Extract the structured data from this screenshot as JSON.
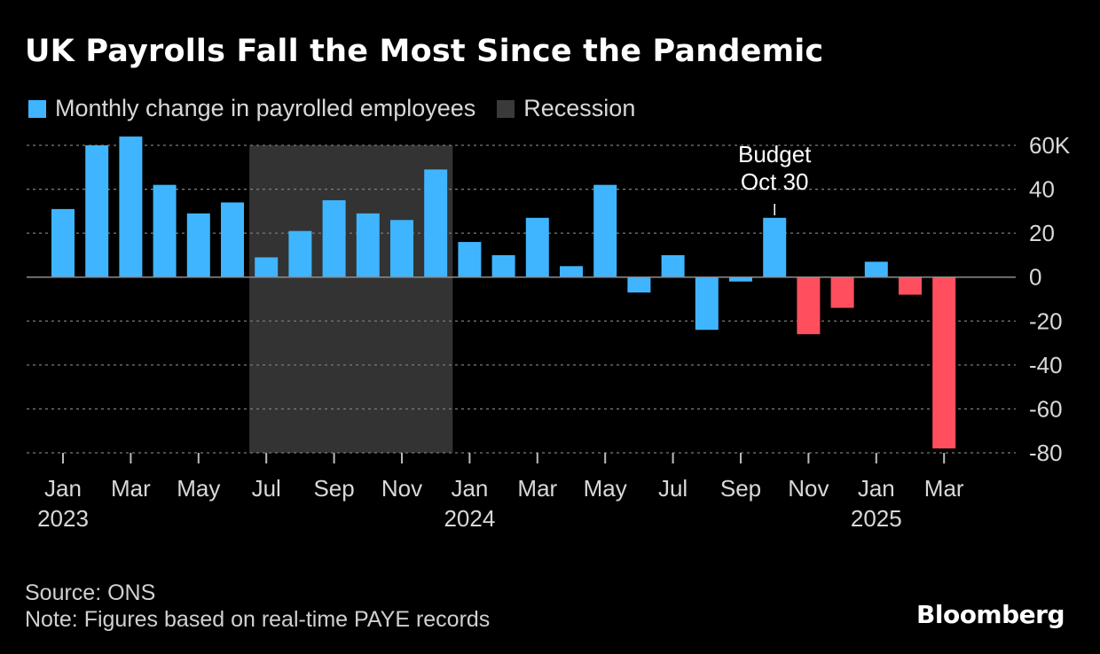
{
  "header": {
    "title": "UK Payrolls Fall the Most Since the Pandemic"
  },
  "legend": {
    "series_label": "Monthly change in payrolled employees",
    "recession_label": "Recession"
  },
  "colors": {
    "positive": "#3FB5FF",
    "negative": "#FF4F5E",
    "recession": "#333333",
    "grid": "#7a7a7a",
    "zero": "#8c8c8c",
    "text": "#d8d8d8"
  },
  "footer": {
    "source": "Source: ONS",
    "note": "Note: Figures based on real-time PAYE records",
    "brand": "Bloomberg"
  },
  "chart_data": {
    "type": "bar",
    "title": "UK Payrolls Fall the Most Since the Pandemic",
    "xlabel": "",
    "ylabel": "",
    "ylim": [
      -80,
      60
    ],
    "y_ticks": [
      60,
      40,
      20,
      0,
      -20,
      -40,
      -60,
      -80
    ],
    "y_tick_labels": [
      "60K",
      "40",
      "20",
      "0",
      "-20",
      "-40",
      "-60",
      "-80"
    ],
    "categories": [
      "2023-01",
      "2023-02",
      "2023-03",
      "2023-04",
      "2023-05",
      "2023-06",
      "2023-07",
      "2023-08",
      "2023-09",
      "2023-10",
      "2023-11",
      "2023-12",
      "2024-01",
      "2024-02",
      "2024-03",
      "2024-04",
      "2024-05",
      "2024-06",
      "2024-07",
      "2024-08",
      "2024-09",
      "2024-10",
      "2024-11",
      "2024-12",
      "2025-01",
      "2025-02",
      "2025-03"
    ],
    "series": [
      {
        "name": "Monthly change in payrolled employees",
        "values": [
          31,
          60,
          64,
          42,
          29,
          34,
          9,
          21,
          35,
          29,
          26,
          49,
          16,
          10,
          27,
          5,
          42,
          -7,
          10,
          -24,
          -2,
          27,
          -26,
          -14,
          7,
          -8,
          -78
        ]
      }
    ],
    "recession": {
      "start": "2023-07",
      "end": "2023-12",
      "label": "Recession"
    },
    "x_ticks": [
      {
        "index": 0,
        "month": "Jan",
        "year": "2023"
      },
      {
        "index": 2,
        "month": "Mar",
        "year": ""
      },
      {
        "index": 4,
        "month": "May",
        "year": ""
      },
      {
        "index": 6,
        "month": "Jul",
        "year": ""
      },
      {
        "index": 8,
        "month": "Sep",
        "year": ""
      },
      {
        "index": 10,
        "month": "Nov",
        "year": ""
      },
      {
        "index": 12,
        "month": "Jan",
        "year": "2024"
      },
      {
        "index": 14,
        "month": "Mar",
        "year": ""
      },
      {
        "index": 16,
        "month": "May",
        "year": ""
      },
      {
        "index": 18,
        "month": "Jul",
        "year": ""
      },
      {
        "index": 20,
        "month": "Sep",
        "year": ""
      },
      {
        "index": 22,
        "month": "Nov",
        "year": ""
      },
      {
        "index": 24,
        "month": "Jan",
        "year": "2025"
      },
      {
        "index": 26,
        "month": "Mar",
        "year": ""
      }
    ],
    "annotations": [
      {
        "index": 21,
        "line1": "Budget",
        "line2": "Oct 30"
      }
    ]
  }
}
